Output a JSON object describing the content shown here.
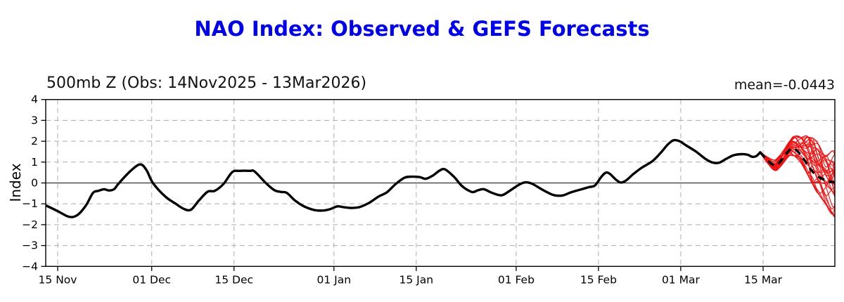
{
  "chart_data": {
    "type": "line",
    "title": "NAO Index: Observed & GEFS Forecasts",
    "subtitle": "500mb Z (Obs: 14Nov2025 - 13Mar2026)",
    "annotation": "mean=-0.0443",
    "ylabel": "Index",
    "ylim": [
      -4,
      4
    ],
    "y_ticks": [
      -4,
      -3,
      -2,
      -1,
      0,
      1,
      2,
      3,
      4
    ],
    "y_tick_labels": [
      "−4",
      "−3",
      "−2",
      "−1",
      "0",
      "1",
      "2",
      "3",
      "4"
    ],
    "x_unit": "days since 15 Nov 2025",
    "x_domain": [
      -2.03,
      132.2
    ],
    "x_ticks": [
      {
        "day": 0,
        "label": "15 Nov"
      },
      {
        "day": 16,
        "label": "01 Dec"
      },
      {
        "day": 30,
        "label": "15 Dec"
      },
      {
        "day": 47,
        "label": "01 Jan"
      },
      {
        "day": 61,
        "label": "15 Jan"
      },
      {
        "day": 78,
        "label": "01 Feb"
      },
      {
        "day": 92,
        "label": "15 Feb"
      },
      {
        "day": 106,
        "label": "01 Mar"
      },
      {
        "day": 120,
        "label": "15 Mar"
      }
    ],
    "grid": "dashed",
    "colors": {
      "observed": "#000000",
      "ensemble": "#f01010",
      "mean_line": "#000000",
      "grid": "#b5b5b5",
      "zero_line": "#333333",
      "title": "#0000ee"
    },
    "series": {
      "observed": {
        "name": "Observed NAO index",
        "style": "solid",
        "points": [
          [
            -2.0,
            -1.08
          ],
          [
            0,
            -1.35
          ],
          [
            1.9,
            -1.62
          ],
          [
            3.3,
            -1.55
          ],
          [
            4.8,
            -1.08
          ],
          [
            6.0,
            -0.48
          ],
          [
            6.9,
            -0.38
          ],
          [
            7.9,
            -0.3
          ],
          [
            8.7,
            -0.36
          ],
          [
            9.6,
            -0.3
          ],
          [
            10.3,
            -0.05
          ],
          [
            12.3,
            0.55
          ],
          [
            14.0,
            0.89
          ],
          [
            15.1,
            0.62
          ],
          [
            16.2,
            0.0
          ],
          [
            18.3,
            -0.65
          ],
          [
            20.1,
            -1.0
          ],
          [
            21.5,
            -1.25
          ],
          [
            22.7,
            -1.28
          ],
          [
            24.0,
            -0.85
          ],
          [
            25.5,
            -0.42
          ],
          [
            26.7,
            -0.38
          ],
          [
            28.2,
            -0.05
          ],
          [
            29.7,
            0.52
          ],
          [
            30.9,
            0.58
          ],
          [
            32.7,
            0.58
          ],
          [
            33.5,
            0.55
          ],
          [
            35.4,
            0.0
          ],
          [
            36.9,
            -0.35
          ],
          [
            38.0,
            -0.43
          ],
          [
            39.0,
            -0.48
          ],
          [
            40.4,
            -0.85
          ],
          [
            41.9,
            -1.12
          ],
          [
            43.7,
            -1.3
          ],
          [
            45.2,
            -1.32
          ],
          [
            46.4,
            -1.25
          ],
          [
            47.6,
            -1.12
          ],
          [
            48.8,
            -1.17
          ],
          [
            50.0,
            -1.2
          ],
          [
            51.4,
            -1.15
          ],
          [
            53.0,
            -0.95
          ],
          [
            54.6,
            -0.65
          ],
          [
            56.0,
            -0.45
          ],
          [
            57.5,
            -0.05
          ],
          [
            59.0,
            0.25
          ],
          [
            60.2,
            0.3
          ],
          [
            61.6,
            0.28
          ],
          [
            62.6,
            0.2
          ],
          [
            63.8,
            0.35
          ],
          [
            65.0,
            0.6
          ],
          [
            65.9,
            0.65
          ],
          [
            67.4,
            0.3
          ],
          [
            68.6,
            -0.1
          ],
          [
            69.5,
            -0.3
          ],
          [
            70.6,
            -0.44
          ],
          [
            71.5,
            -0.35
          ],
          [
            72.5,
            -0.3
          ],
          [
            73.7,
            -0.45
          ],
          [
            74.9,
            -0.57
          ],
          [
            75.8,
            -0.57
          ],
          [
            77.3,
            -0.3
          ],
          [
            78.7,
            -0.05
          ],
          [
            79.7,
            0.03
          ],
          [
            80.8,
            -0.05
          ],
          [
            82.3,
            -0.3
          ],
          [
            83.8,
            -0.52
          ],
          [
            84.7,
            -0.6
          ],
          [
            85.9,
            -0.6
          ],
          [
            87.3,
            -0.45
          ],
          [
            88.9,
            -0.32
          ],
          [
            90.4,
            -0.2
          ],
          [
            91.4,
            -0.12
          ],
          [
            92.5,
            0.3
          ],
          [
            93.3,
            0.5
          ],
          [
            94.0,
            0.42
          ],
          [
            95.0,
            0.15
          ],
          [
            95.8,
            0.02
          ],
          [
            96.7,
            0.12
          ],
          [
            97.9,
            0.42
          ],
          [
            99.3,
            0.72
          ],
          [
            101.2,
            1.05
          ],
          [
            102.6,
            1.45
          ],
          [
            103.8,
            1.85
          ],
          [
            104.8,
            2.05
          ],
          [
            105.8,
            2.0
          ],
          [
            106.9,
            1.8
          ],
          [
            108.6,
            1.5
          ],
          [
            110.2,
            1.15
          ],
          [
            111.4,
            0.98
          ],
          [
            112.5,
            0.97
          ],
          [
            113.7,
            1.15
          ],
          [
            115.0,
            1.33
          ],
          [
            116.4,
            1.38
          ],
          [
            117.4,
            1.35
          ],
          [
            118.2,
            1.25
          ],
          [
            118.9,
            1.3
          ],
          [
            119.5,
            1.47
          ]
        ]
      },
      "ensemble_mean": {
        "name": "GEFS ensemble mean",
        "style": "dashed",
        "points": [
          [
            119.5,
            1.47
          ],
          [
            120.7,
            1.1
          ],
          [
            121.9,
            0.85
          ],
          [
            122.7,
            0.95
          ],
          [
            123.6,
            1.28
          ],
          [
            124.5,
            1.58
          ],
          [
            125.3,
            1.64
          ],
          [
            126.4,
            1.35
          ],
          [
            127.6,
            0.85
          ],
          [
            128.4,
            0.55
          ],
          [
            129.4,
            0.3
          ],
          [
            130.6,
            0.13
          ],
          [
            131.8,
            0.05
          ],
          [
            132.5,
            0.02
          ]
        ]
      },
      "ensemble_members": {
        "name": "GEFS forecast members",
        "count": 30,
        "seed": 13,
        "envelope": [
          [
            119.5,
            1.4,
            1.54
          ],
          [
            120.7,
            0.95,
            1.3
          ],
          [
            121.9,
            0.6,
            1.1
          ],
          [
            122.7,
            0.7,
            1.28
          ],
          [
            123.6,
            1.0,
            1.62
          ],
          [
            124.5,
            1.3,
            2.0
          ],
          [
            125.3,
            1.28,
            2.25
          ],
          [
            126.4,
            0.95,
            2.2
          ],
          [
            127.6,
            0.35,
            2.25
          ],
          [
            128.4,
            -0.1,
            2.2
          ],
          [
            129.4,
            -0.55,
            1.9
          ],
          [
            130.6,
            -1.05,
            1.7
          ],
          [
            131.8,
            -1.55,
            1.6
          ],
          [
            132.5,
            -1.75,
            1.55
          ]
        ]
      }
    }
  }
}
